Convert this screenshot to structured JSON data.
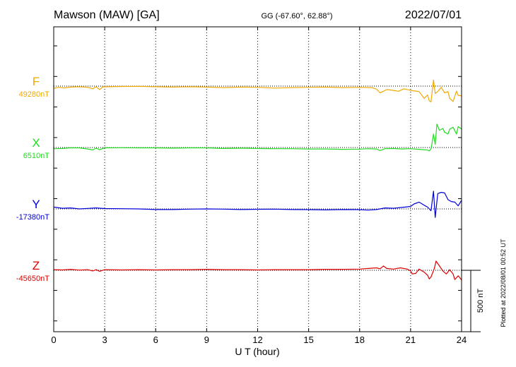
{
  "header": {
    "station": "Mawson (MAW)  [GA]",
    "coords": "GG (-67.60°,  62.88°)",
    "date": "2022/07/01"
  },
  "footer": {
    "plotted": "Plotted at 2022/08/01 00:52 UT",
    "scale_label": "500 nT"
  },
  "chart_data": {
    "type": "line",
    "xlabel": "U T (hour)",
    "xlim": [
      0,
      24
    ],
    "xticks": [
      0,
      3,
      6,
      9,
      12,
      15,
      18,
      21,
      24
    ],
    "grid": true,
    "scale_bar_nT": 500,
    "series": [
      {
        "name": "F",
        "baseline_label": "49280nT",
        "baseline_nT": 49280,
        "color": "#f2a900",
        "points": [
          [
            0,
            -18
          ],
          [
            0.3,
            -10
          ],
          [
            0.6,
            -15
          ],
          [
            1,
            -8
          ],
          [
            1.5,
            -5
          ],
          [
            2,
            -10
          ],
          [
            2.3,
            -22
          ],
          [
            2.5,
            -5
          ],
          [
            2.7,
            -28
          ],
          [
            2.9,
            -6
          ],
          [
            3.2,
            -5
          ],
          [
            4,
            -3
          ],
          [
            5,
            -2
          ],
          [
            6,
            -5
          ],
          [
            7,
            -8
          ],
          [
            8,
            -5
          ],
          [
            9,
            -8
          ],
          [
            10,
            -12
          ],
          [
            11,
            -8
          ],
          [
            12,
            -10
          ],
          [
            13,
            -16
          ],
          [
            14,
            -12
          ],
          [
            15,
            -10
          ],
          [
            16,
            -8
          ],
          [
            17,
            -12
          ],
          [
            18,
            -10
          ],
          [
            18.7,
            -12
          ],
          [
            19,
            -25
          ],
          [
            19.2,
            -55
          ],
          [
            19.4,
            -42
          ],
          [
            19.6,
            -28
          ],
          [
            20,
            -35
          ],
          [
            20.3,
            -42
          ],
          [
            20.6,
            -22
          ],
          [
            21,
            -35
          ],
          [
            21.3,
            -40
          ],
          [
            21.5,
            -45
          ],
          [
            21.8,
            -100
          ],
          [
            22,
            -72
          ],
          [
            22.1,
            -120
          ],
          [
            22.2,
            -128
          ],
          [
            22.35,
            50
          ],
          [
            22.45,
            -60
          ],
          [
            22.6,
            -45
          ],
          [
            22.8,
            -10
          ],
          [
            23,
            -55
          ],
          [
            23.2,
            -45
          ],
          [
            23.3,
            -100
          ],
          [
            23.5,
            -125
          ],
          [
            23.7,
            -40
          ],
          [
            23.8,
            -75
          ],
          [
            24,
            -80
          ]
        ]
      },
      {
        "name": "X",
        "baseline_label": "6510nT",
        "baseline_nT": 6510,
        "color": "#22dd22",
        "points": [
          [
            0,
            -10
          ],
          [
            0.5,
            -8
          ],
          [
            1,
            -3
          ],
          [
            1.5,
            -3
          ],
          [
            2,
            -12
          ],
          [
            2.3,
            -20
          ],
          [
            2.5,
            -5
          ],
          [
            2.7,
            -18
          ],
          [
            3,
            -3
          ],
          [
            4,
            -2
          ],
          [
            5,
            -3
          ],
          [
            6,
            -3
          ],
          [
            7,
            -5
          ],
          [
            8,
            -3
          ],
          [
            9,
            -3
          ],
          [
            10,
            -8
          ],
          [
            11,
            -5
          ],
          [
            12,
            -8
          ],
          [
            13,
            -10
          ],
          [
            14,
            -10
          ],
          [
            15,
            -12
          ],
          [
            16,
            -12
          ],
          [
            17,
            -15
          ],
          [
            18,
            -13
          ],
          [
            18.5,
            -10
          ],
          [
            19,
            -12
          ],
          [
            19.2,
            -25
          ],
          [
            19.5,
            -10
          ],
          [
            20,
            -8
          ],
          [
            20.5,
            -12
          ],
          [
            21,
            -10
          ],
          [
            21.5,
            -15
          ],
          [
            22,
            -20
          ],
          [
            22.1,
            -28
          ],
          [
            22.2,
            -12
          ],
          [
            22.25,
            25
          ],
          [
            22.35,
            110
          ],
          [
            22.45,
            25
          ],
          [
            22.55,
            190
          ],
          [
            22.7,
            140
          ],
          [
            22.9,
            155
          ],
          [
            23,
            125
          ],
          [
            23.2,
            110
          ],
          [
            23.3,
            150
          ],
          [
            23.5,
            165
          ],
          [
            23.7,
            110
          ],
          [
            23.8,
            170
          ],
          [
            24,
            150
          ]
        ]
      },
      {
        "name": "Y",
        "baseline_label": "-17380nT",
        "baseline_nT": -17380,
        "color": "#0000dd",
        "points": [
          [
            0,
            15
          ],
          [
            0.5,
            5
          ],
          [
            1,
            8
          ],
          [
            1.5,
            0
          ],
          [
            2,
            4
          ],
          [
            2.5,
            8
          ],
          [
            3,
            3
          ],
          [
            4,
            2
          ],
          [
            5,
            0
          ],
          [
            6,
            -5
          ],
          [
            7,
            -5
          ],
          [
            8,
            -2
          ],
          [
            9,
            0
          ],
          [
            10,
            -2
          ],
          [
            11,
            -5
          ],
          [
            12,
            -3
          ],
          [
            13,
            -2
          ],
          [
            14,
            -5
          ],
          [
            15,
            -6
          ],
          [
            16,
            -8
          ],
          [
            17,
            -5
          ],
          [
            18,
            -6
          ],
          [
            18.5,
            -10
          ],
          [
            19,
            -5
          ],
          [
            19.5,
            8
          ],
          [
            20,
            5
          ],
          [
            20.5,
            12
          ],
          [
            21,
            20
          ],
          [
            21.2,
            40
          ],
          [
            21.5,
            55
          ],
          [
            21.8,
            30
          ],
          [
            22,
            15
          ],
          [
            22.2,
            -15
          ],
          [
            22.35,
            145
          ],
          [
            22.45,
            -70
          ],
          [
            22.6,
            125
          ],
          [
            22.8,
            135
          ],
          [
            23,
            130
          ],
          [
            23.2,
            75
          ],
          [
            23.4,
            60
          ],
          [
            23.6,
            55
          ],
          [
            23.8,
            25
          ],
          [
            24,
            70
          ]
        ]
      },
      {
        "name": "Z",
        "baseline_label": "-45650nT",
        "baseline_nT": -45650,
        "color": "#dd0000",
        "points": [
          [
            0,
            5
          ],
          [
            0.5,
            3
          ],
          [
            1,
            8
          ],
          [
            1.5,
            2
          ],
          [
            2,
            5
          ],
          [
            2.3,
            -5
          ],
          [
            2.5,
            5
          ],
          [
            2.7,
            -8
          ],
          [
            3,
            5
          ],
          [
            4,
            3
          ],
          [
            5,
            5
          ],
          [
            6,
            3
          ],
          [
            7,
            5
          ],
          [
            8,
            5
          ],
          [
            9,
            8
          ],
          [
            10,
            5
          ],
          [
            11,
            5
          ],
          [
            12,
            3
          ],
          [
            13,
            5
          ],
          [
            14,
            5
          ],
          [
            15,
            5
          ],
          [
            16,
            8
          ],
          [
            17,
            8
          ],
          [
            18,
            10
          ],
          [
            18.5,
            15
          ],
          [
            19,
            20
          ],
          [
            19.2,
            12
          ],
          [
            19.4,
            35
          ],
          [
            19.6,
            15
          ],
          [
            20,
            10
          ],
          [
            20.4,
            20
          ],
          [
            20.8,
            10
          ],
          [
            21,
            -5
          ],
          [
            21.1,
            -30
          ],
          [
            21.3,
            -25
          ],
          [
            21.5,
            10
          ],
          [
            21.8,
            -15
          ],
          [
            22,
            -40
          ],
          [
            22.1,
            -70
          ],
          [
            22.2,
            -55
          ],
          [
            22.4,
            15
          ],
          [
            22.5,
            75
          ],
          [
            22.7,
            35
          ],
          [
            22.9,
            -5
          ],
          [
            23.1,
            -30
          ],
          [
            23.3,
            5
          ],
          [
            23.5,
            -30
          ],
          [
            23.6,
            -75
          ],
          [
            23.8,
            -45
          ],
          [
            24,
            -78
          ]
        ]
      }
    ]
  }
}
